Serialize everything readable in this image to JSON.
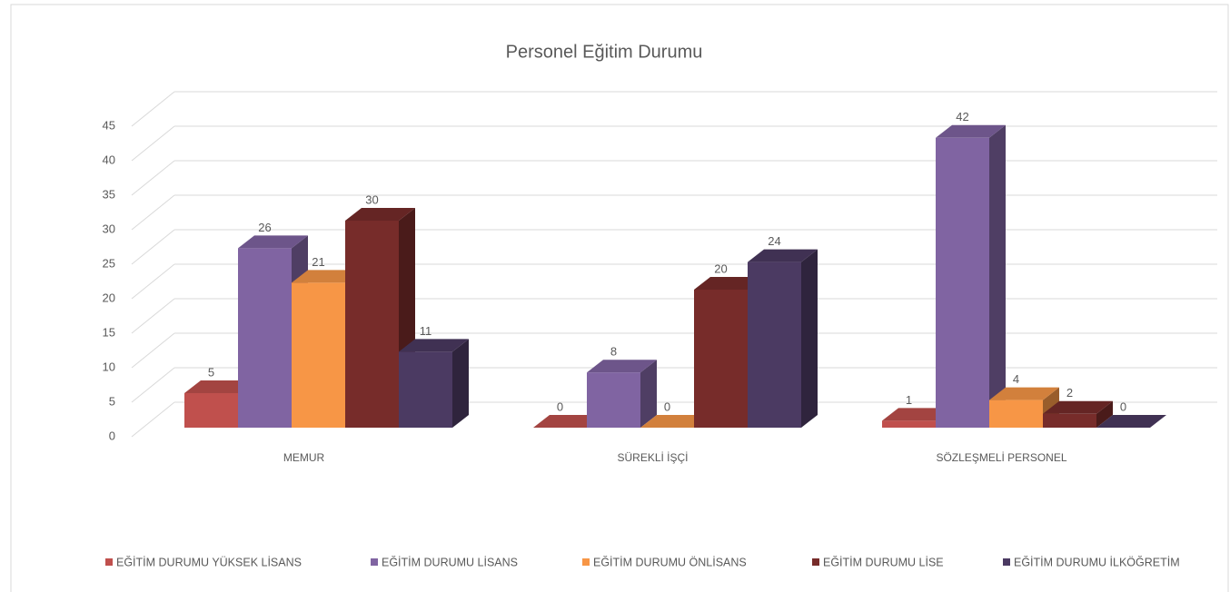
{
  "chart_data": {
    "type": "bar3d",
    "title": "Personel Eğitim Durumu",
    "categories": [
      "MEMUR",
      "SÜREKLİ İŞÇİ",
      "SÖZLEŞMELİ PERSONEL"
    ],
    "series": [
      {
        "name": "EĞİTİM DURUMU YÜKSEK LİSANS",
        "color": "#c0504d",
        "values": [
          5,
          0,
          1
        ]
      },
      {
        "name": "EĞİTİM DURUMU LİSANS",
        "color": "#8064a2",
        "values": [
          26,
          8,
          42
        ]
      },
      {
        "name": "EĞİTİM DURUMU ÖNLİSANS",
        "color": "#f79646",
        "values": [
          21,
          0,
          4
        ]
      },
      {
        "name": "EĞİTİM DURUMU LİSE",
        "color": "#772c2a",
        "values": [
          30,
          20,
          2
        ]
      },
      {
        "name": "EĞİTİM DURUMU İLKÖĞRETİM",
        "color": "#4b3a62",
        "values": [
          11,
          24,
          0
        ]
      }
    ],
    "ylim": [
      0,
      45
    ],
    "yticks": [
      0,
      5,
      10,
      15,
      20,
      25,
      30,
      35,
      40,
      45
    ],
    "grid": true,
    "legend": "bottom"
  }
}
